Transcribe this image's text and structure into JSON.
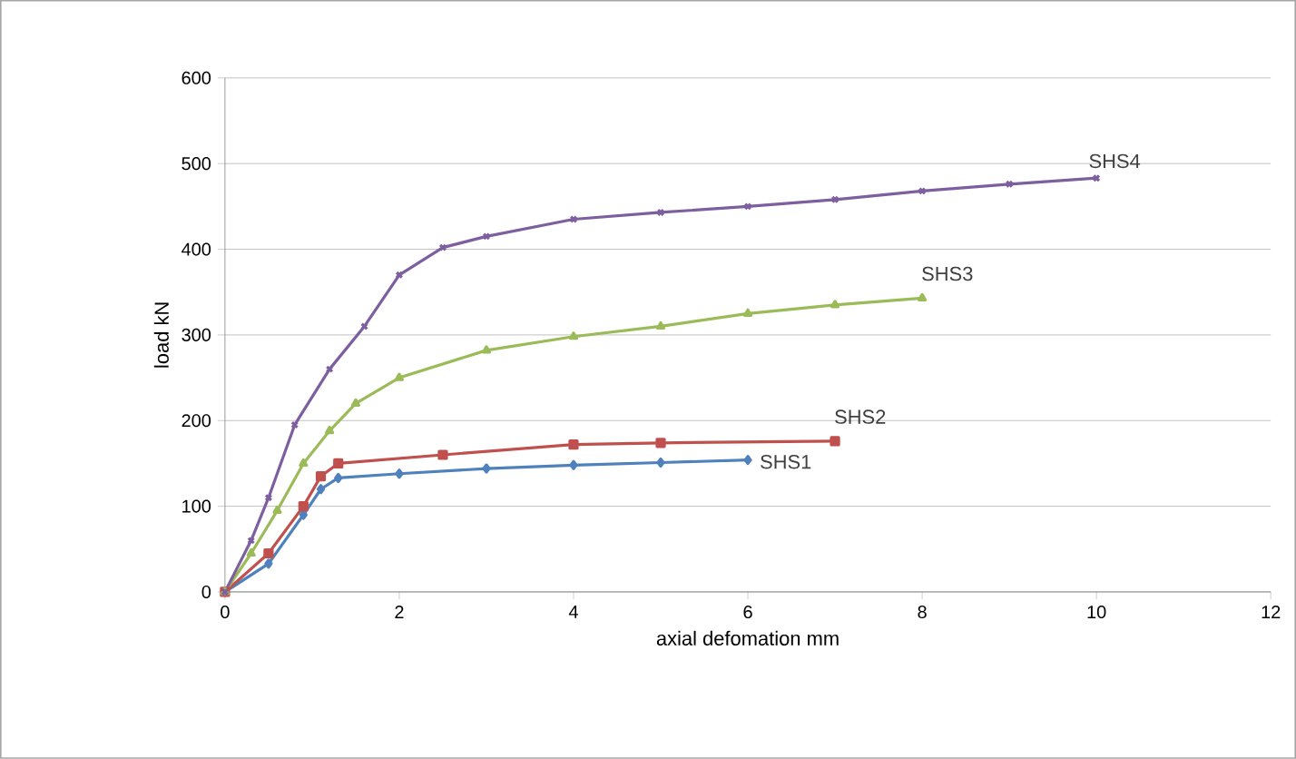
{
  "chart_data": {
    "type": "line",
    "xlabel": "axial defomation mm",
    "ylabel": "load kN",
    "xlim": [
      0,
      12
    ],
    "xticks": [
      0,
      2,
      4,
      6,
      8,
      10,
      12
    ],
    "ylim": [
      0,
      600
    ],
    "yticks": [
      0,
      100,
      200,
      300,
      400,
      500,
      600
    ],
    "grid": "y",
    "legend": false,
    "line_style": "solid",
    "series": [
      {
        "name": "SHS1",
        "color": "#4f81bd",
        "marker": "diamond",
        "x": [
          0,
          0.5,
          0.9,
          1.1,
          1.3,
          2,
          3,
          4,
          5,
          6
        ],
        "values": [
          0,
          33,
          90,
          120,
          133,
          138,
          144,
          148,
          151,
          154
        ]
      },
      {
        "name": "SHS2",
        "color": "#c0504d",
        "marker": "square",
        "x": [
          0,
          0.5,
          0.9,
          1.1,
          1.3,
          2.5,
          4,
          5,
          7
        ],
        "values": [
          0,
          45,
          100,
          135,
          150,
          160,
          172,
          174,
          176
        ]
      },
      {
        "name": "SHS3",
        "color": "#9bbb59",
        "marker": "triangle",
        "x": [
          0,
          0.3,
          0.6,
          0.9,
          1.2,
          1.5,
          2,
          3,
          4,
          5,
          6,
          7,
          8
        ],
        "values": [
          0,
          45,
          95,
          150,
          188,
          220,
          250,
          282,
          298,
          310,
          325,
          335,
          343
        ]
      },
      {
        "name": "SHS4",
        "color": "#7d5fa0",
        "marker": "cross",
        "x": [
          0,
          0.3,
          0.5,
          0.8,
          1.2,
          1.6,
          2,
          2.5,
          3,
          4,
          5,
          6,
          7,
          8,
          9,
          10
        ],
        "values": [
          0,
          60,
          110,
          195,
          260,
          310,
          370,
          402,
          415,
          435,
          443,
          450,
          458,
          468,
          476,
          483
        ]
      }
    ]
  }
}
